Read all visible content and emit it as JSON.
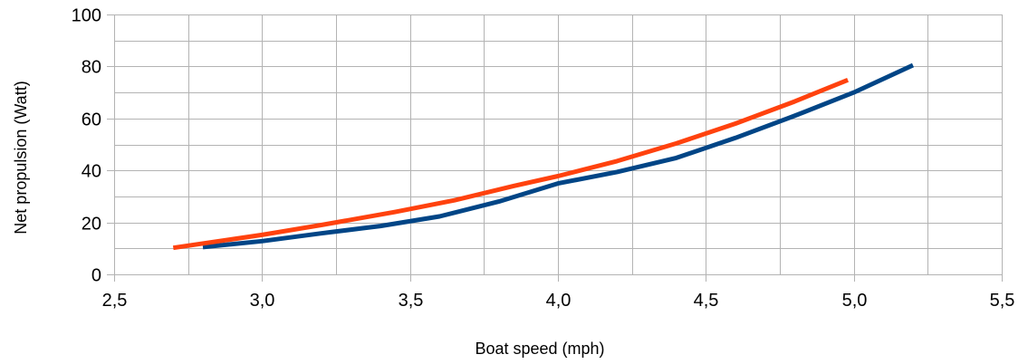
{
  "chart_data": {
    "type": "line",
    "title": "",
    "xlabel": "Boat speed (mph)",
    "ylabel": "Net propulsion (Watt)",
    "xlim": [
      2.5,
      5.5
    ],
    "ylim": [
      0,
      100
    ],
    "x_ticks": [
      "2,5",
      "3,0",
      "3,5",
      "4,0",
      "4,5",
      "5,0",
      "5,5"
    ],
    "x_tick_values": [
      2.5,
      3.0,
      3.5,
      4.0,
      4.5,
      5.0,
      5.5
    ],
    "y_ticks": [
      "0",
      "20",
      "40",
      "60",
      "80",
      "100"
    ],
    "y_tick_values": [
      0,
      20,
      40,
      60,
      80,
      100
    ],
    "y_minor_step": 10,
    "x_minor_step": 0.25,
    "grid": true,
    "legend": "none",
    "series": [
      {
        "color": "#004586",
        "points": [
          [
            2.8,
            10.5
          ],
          [
            3.0,
            12.8
          ],
          [
            3.2,
            15.8
          ],
          [
            3.4,
            18.6
          ],
          [
            3.6,
            22.3
          ],
          [
            3.8,
            28
          ],
          [
            4.0,
            35
          ],
          [
            4.2,
            39.4
          ],
          [
            4.4,
            44.8
          ],
          [
            4.6,
            52.5
          ],
          [
            4.8,
            61
          ],
          [
            5.0,
            70
          ],
          [
            5.2,
            80.5
          ]
        ]
      },
      {
        "color": "#ff420e",
        "points": [
          [
            2.7,
            10.2
          ],
          [
            3.0,
            15.2
          ],
          [
            3.2,
            19
          ],
          [
            3.45,
            24
          ],
          [
            3.65,
            28.5
          ],
          [
            3.85,
            34
          ],
          [
            4.0,
            37.8
          ],
          [
            4.2,
            43.6
          ],
          [
            4.4,
            50.4
          ],
          [
            4.6,
            58
          ],
          [
            4.8,
            66.5
          ],
          [
            4.98,
            74.8
          ]
        ]
      }
    ]
  }
}
